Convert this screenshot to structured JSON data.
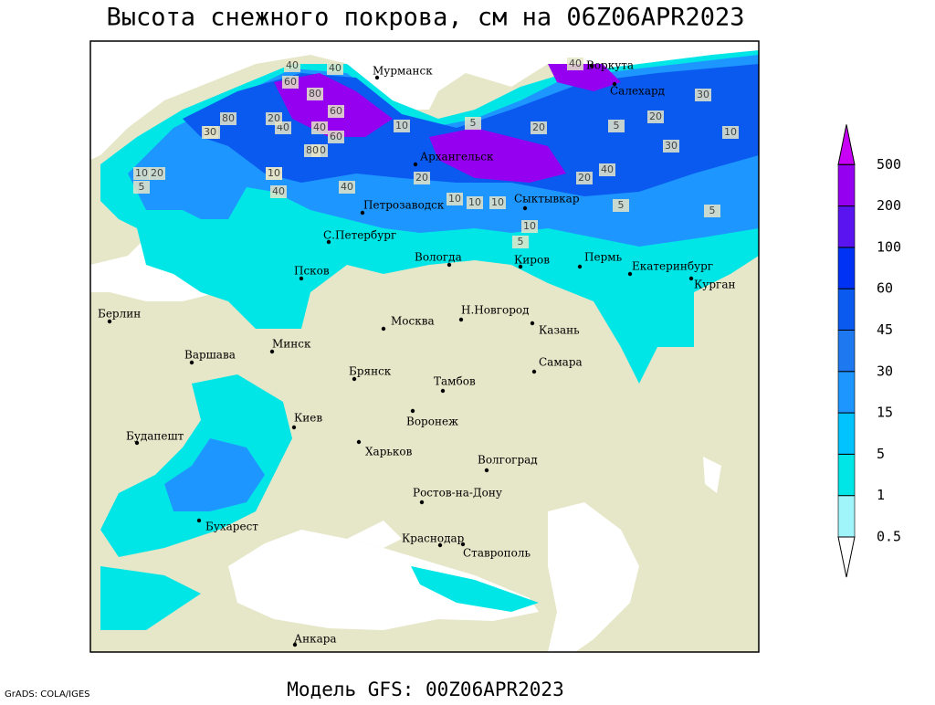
{
  "header": {
    "title": "Высота снежного покрова, см на 06Z06APR2023"
  },
  "footer": {
    "model": "Модель GFS: 00Z06APR2023",
    "credit": "GrADS: COLA/IGES"
  },
  "colorbar": {
    "levels": [
      0.5,
      1,
      5,
      15,
      30,
      45,
      60,
      100,
      200,
      500
    ],
    "colors": [
      "#ffffff",
      "#9ff5fa",
      "#00e6e6",
      "#00c3ff",
      "#1e96ff",
      "#1e78f0",
      "#0a5af0",
      "#0032f5",
      "#5a14f0",
      "#9600f0",
      "#c800f5"
    ]
  },
  "cities": [
    "Мурманск",
    "Воркута",
    "Салехард",
    "Архангельск",
    "Петрозаводск",
    "Сыктывкар",
    "С.Петербург",
    "Вологда",
    "Киров",
    "Пермь",
    "Екатеринбург",
    "Курган",
    "Псков",
    "Берлин",
    "Москва",
    "Н.Новгород",
    "Казань",
    "Варшава",
    "Минск",
    "Самара",
    "Брянск",
    "Тамбов",
    "Киев",
    "Воронеж",
    "Будапешт",
    "Харьков",
    "Волгоград",
    "Ростов-на-Дону",
    "Бухарест",
    "Краснодар",
    "Ставрополь",
    "Анкара"
  ],
  "contour_labels": [
    40,
    60,
    40,
    80,
    60,
    40,
    40,
    30,
    60,
    80,
    80,
    40,
    20,
    20,
    10,
    40,
    30,
    40,
    10,
    20,
    5,
    10,
    20,
    10,
    5,
    5,
    10,
    20,
    10,
    5,
    5,
    10,
    20,
    30,
    10,
    40,
    20,
    5,
    40,
    30
  ]
}
